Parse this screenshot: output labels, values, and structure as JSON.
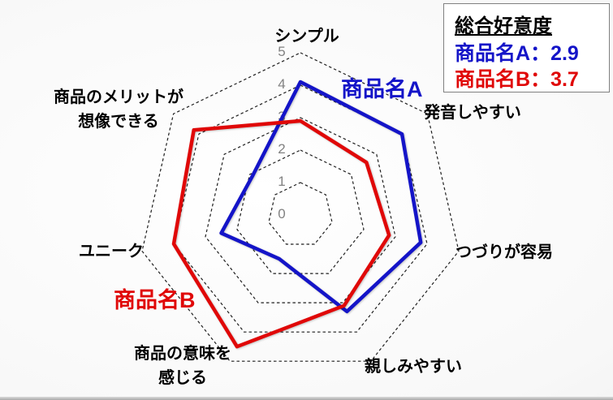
{
  "legend": {
    "title": "総合好意度",
    "items": [
      {
        "text": "商品名A：2.9",
        "color": "#1414c8"
      },
      {
        "text": "商品名B：3.7",
        "color": "#e00808"
      }
    ]
  },
  "chart_data": {
    "type": "radar",
    "categories": [
      "シンプル",
      "発音しやすい",
      "つづりが容易",
      "親しみやすい",
      "商品の意味を感じる",
      "ユニーク",
      "商品のメリットが想像できる"
    ],
    "series": [
      {
        "name": "商品名A",
        "color": "#1414c8",
        "values": [
          4.1,
          4.0,
          3.8,
          3.3,
          1.5,
          2.5,
          1.9
        ]
      },
      {
        "name": "商品名B",
        "color": "#e00808",
        "values": [
          2.9,
          2.6,
          2.8,
          3.1,
          4.5,
          4.0,
          4.2
        ]
      }
    ],
    "ticks": [
      0,
      1,
      2,
      3,
      4,
      5
    ],
    "rmin": 0,
    "rmax": 5,
    "grid_style": "dashed",
    "spokes": false,
    "legend_position": "top-right"
  }
}
